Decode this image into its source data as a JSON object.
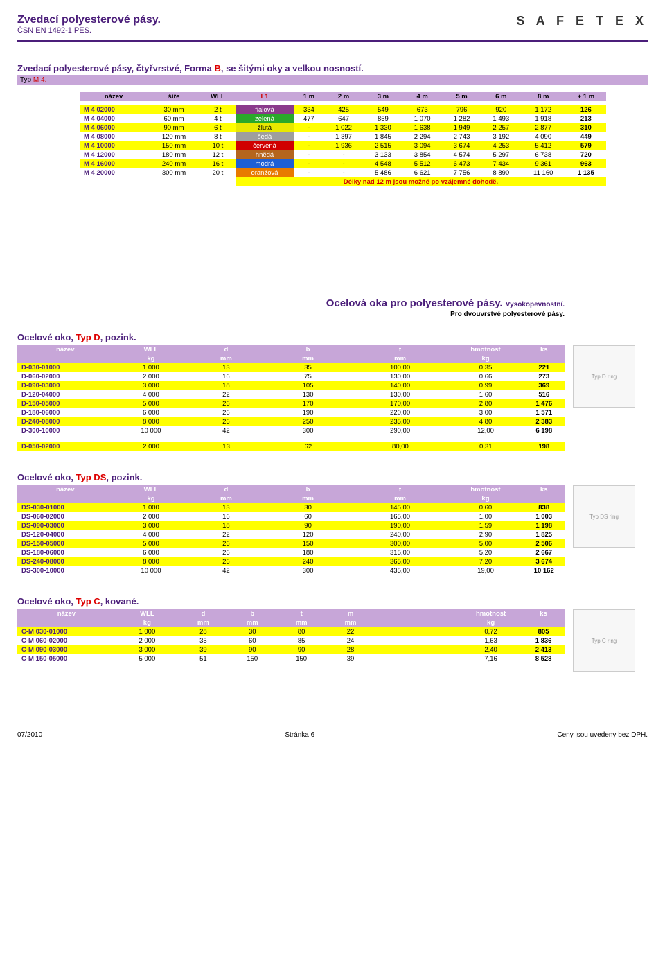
{
  "header": {
    "title": "Zvedací polyesterové pásy.",
    "subtitle": "ČSN EN 1492-1 PES.",
    "logo": "S A F E T E X"
  },
  "section1": {
    "title_a": "Zvedací polyesterové pásy, čtyřvrstvé, Forma ",
    "title_b": "B",
    "title_c": ", se šitými oky a velkou nosností.",
    "type_label": "Typ ",
    "type_val": "M 4.",
    "headers": [
      "název",
      "šíře",
      "WLL",
      "L1",
      "1 m",
      "2 m",
      "3 m",
      "4 m",
      "5 m",
      "6 m",
      "8 m",
      "+ 1 m"
    ],
    "rows": [
      {
        "c": [
          "M 4 02000",
          "30 mm",
          "2 t",
          "fialová",
          "334",
          "425",
          "549",
          "673",
          "796",
          "920",
          "1 172",
          "126"
        ],
        "bg": "#ffff00",
        "cc": "#8b3a8b"
      },
      {
        "c": [
          "M 4 04000",
          "60 mm",
          "4 t",
          "zelená",
          "477",
          "647",
          "859",
          "1 070",
          "1 282",
          "1 493",
          "1 918",
          "213"
        ],
        "bg": "#ffffff",
        "cc": "#2aa82a"
      },
      {
        "c": [
          "M 4 06000",
          "90 mm",
          "6 t",
          "žlutá",
          "-",
          "1 022",
          "1 330",
          "1 638",
          "1 949",
          "2 257",
          "2 877",
          "310"
        ],
        "bg": "#ffff00",
        "cc": "#e8e800"
      },
      {
        "c": [
          "M 4 08000",
          "120 mm",
          "8 t",
          "šedá",
          "-",
          "1 397",
          "1 845",
          "2 294",
          "2 743",
          "3 192",
          "4 090",
          "449"
        ],
        "bg": "#ffffff",
        "cc": "#9e9e9e"
      },
      {
        "c": [
          "M 4 10000",
          "150 mm",
          "10 t",
          "červená",
          "-",
          "1 936",
          "2 515",
          "3 094",
          "3 674",
          "4 253",
          "5 412",
          "579"
        ],
        "bg": "#ffff00",
        "cc": "#d00000"
      },
      {
        "c": [
          "M 4 12000",
          "180 mm",
          "12 t",
          "hnědá",
          "-",
          "-",
          "3 133",
          "3 854",
          "4 574",
          "5 297",
          "6 738",
          "720"
        ],
        "bg": "#ffffff",
        "cc": "#b5651d"
      },
      {
        "c": [
          "M 4 16000",
          "240 mm",
          "16 t",
          "modrá",
          "-",
          "-",
          "4 548",
          "5 512",
          "6 473",
          "7 434",
          "9 361",
          "963"
        ],
        "bg": "#ffff00",
        "cc": "#1e5fd6"
      },
      {
        "c": [
          "M 4 20000",
          "300 mm",
          "20 t",
          "oranžová",
          "-",
          "-",
          "5 486",
          "6 621",
          "7 756",
          "8 890",
          "11 160",
          "1 135"
        ],
        "bg": "#ffffff",
        "cc": "#e87a00"
      }
    ],
    "note": "Délky nad 12 m jsou možné po vzájemné dohodě."
  },
  "rings_title": {
    "main": "Ocelová oka pro polyesterové pásy.",
    "sub1": "Vysokopevnostní.",
    "sub2": "Pro dvouvrstvé polyesterové pásy."
  },
  "sectionD": {
    "title_a": "Ocelové oko, ",
    "title_b": "Typ D",
    "title_c": ", pozink.",
    "headers": [
      "název",
      "WLL",
      "d",
      "b",
      "t",
      "hmotnost",
      "ks"
    ],
    "units": [
      "",
      "kg",
      "mm",
      "mm",
      "mm",
      "kg",
      ""
    ],
    "rows": [
      {
        "c": [
          "D-030-01000",
          "1 000",
          "13",
          "35",
          "100,00",
          "0,35",
          "221"
        ],
        "bg": "#ffff00"
      },
      {
        "c": [
          "D-060-02000",
          "2 000",
          "16",
          "75",
          "130,00",
          "0,66",
          "273"
        ],
        "bg": "#ffffff"
      },
      {
        "c": [
          "D-090-03000",
          "3 000",
          "18",
          "105",
          "140,00",
          "0,99",
          "369"
        ],
        "bg": "#ffff00"
      },
      {
        "c": [
          "D-120-04000",
          "4 000",
          "22",
          "130",
          "130,00",
          "1,60",
          "516"
        ],
        "bg": "#ffffff"
      },
      {
        "c": [
          "D-150-05000",
          "5 000",
          "26",
          "170",
          "170,00",
          "2,80",
          "1 476"
        ],
        "bg": "#ffff00"
      },
      {
        "c": [
          "D-180-06000",
          "6 000",
          "26",
          "190",
          "220,00",
          "3,00",
          "1 571"
        ],
        "bg": "#ffffff"
      },
      {
        "c": [
          "D-240-08000",
          "8 000",
          "26",
          "250",
          "235,00",
          "4,80",
          "2 383"
        ],
        "bg": "#ffff00"
      },
      {
        "c": [
          "D-300-10000",
          "10 000",
          "42",
          "300",
          "290,00",
          "12,00",
          "6 198"
        ],
        "bg": "#ffffff"
      }
    ],
    "extra": {
      "c": [
        "D-050-02000",
        "2 000",
        "13",
        "62",
        "80,00",
        "0,31",
        "198"
      ],
      "bg": "#ffff00"
    }
  },
  "sectionDS": {
    "title_a": "Ocelové oko, ",
    "title_b": "Typ DS",
    "title_c": ", pozink.",
    "headers": [
      "název",
      "WLL",
      "d",
      "b",
      "t",
      "hmotnost",
      "ks"
    ],
    "units": [
      "",
      "kg",
      "mm",
      "mm",
      "mm",
      "kg",
      ""
    ],
    "rows": [
      {
        "c": [
          "DS-030-01000",
          "1 000",
          "13",
          "30",
          "145,00",
          "0,60",
          "838"
        ],
        "bg": "#ffff00"
      },
      {
        "c": [
          "DS-060-02000",
          "2 000",
          "16",
          "60",
          "165,00",
          "1,00",
          "1 003"
        ],
        "bg": "#ffffff"
      },
      {
        "c": [
          "DS-090-03000",
          "3 000",
          "18",
          "90",
          "190,00",
          "1,59",
          "1 198"
        ],
        "bg": "#ffff00"
      },
      {
        "c": [
          "DS-120-04000",
          "4 000",
          "22",
          "120",
          "240,00",
          "2,90",
          "1 825"
        ],
        "bg": "#ffffff"
      },
      {
        "c": [
          "DS-150-05000",
          "5 000",
          "26",
          "150",
          "300,00",
          "5,00",
          "2 506"
        ],
        "bg": "#ffff00"
      },
      {
        "c": [
          "DS-180-06000",
          "6 000",
          "26",
          "180",
          "315,00",
          "5,20",
          "2 667"
        ],
        "bg": "#ffffff"
      },
      {
        "c": [
          "DS-240-08000",
          "8 000",
          "26",
          "240",
          "365,00",
          "7,20",
          "3 674"
        ],
        "bg": "#ffff00"
      },
      {
        "c": [
          "DS-300-10000",
          "10 000",
          "42",
          "300",
          "435,00",
          "19,00",
          "10 162"
        ],
        "bg": "#ffffff"
      }
    ]
  },
  "sectionC": {
    "title_a": "Ocelové oko, ",
    "title_b": "Typ C",
    "title_c": ", kované.",
    "headers": [
      "název",
      "WLL",
      "d",
      "b",
      "t",
      "m",
      "",
      "hmotnost",
      "ks"
    ],
    "units": [
      "",
      "kg",
      "mm",
      "mm",
      "mm",
      "mm",
      "",
      "kg",
      ""
    ],
    "rows": [
      {
        "c": [
          "C-M 030-01000",
          "1 000",
          "28",
          "30",
          "80",
          "22",
          "",
          "0,72",
          "805"
        ],
        "bg": "#ffff00"
      },
      {
        "c": [
          "C-M 060-02000",
          "2 000",
          "35",
          "60",
          "85",
          "24",
          "",
          "1,63",
          "1 836"
        ],
        "bg": "#ffffff"
      },
      {
        "c": [
          "C-M 090-03000",
          "3 000",
          "39",
          "90",
          "90",
          "28",
          "",
          "2,40",
          "2 413"
        ],
        "bg": "#ffff00"
      },
      {
        "c": [
          "C-M 150-05000",
          "5 000",
          "51",
          "150",
          "150",
          "39",
          "",
          "7,16",
          "8 528"
        ],
        "bg": "#ffffff"
      }
    ]
  },
  "footer": {
    "left": "07/2010",
    "center": "Stránka 6",
    "right": "Ceny jsou uvedeny bez DPH."
  },
  "ring_labels": {
    "d": "Typ D ring",
    "ds": "Typ DS ring",
    "c": "Typ C ring"
  }
}
